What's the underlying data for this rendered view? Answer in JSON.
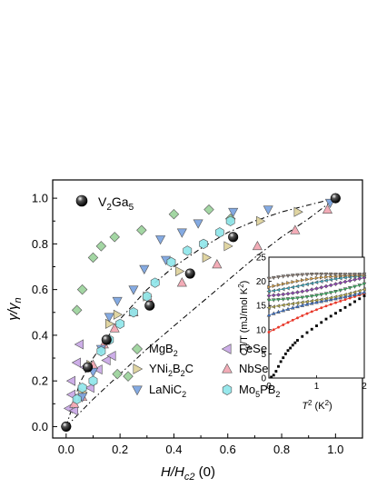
{
  "chart_data": [
    {
      "type": "scatter",
      "xlabel": "H/H",
      "xlabel_sub": "c2",
      "xlabel_tail": " (0)",
      "ylabel": "γ/γ",
      "ylabel_sub": "n",
      "xlim": [
        -0.05,
        1.1
      ],
      "ylim": [
        -0.05,
        1.08
      ],
      "xticks": [
        "0.0",
        "0.2",
        "0.4",
        "0.6",
        "0.8",
        "1.0"
      ],
      "yticks": [
        "0.0",
        "0.2",
        "0.4",
        "0.6",
        "0.8",
        "1.0"
      ],
      "legend_main": {
        "label": "V",
        "sub1": "2",
        "mid": "Ga",
        "sub2": "5"
      },
      "legend": [
        {
          "key": "mgb2",
          "parts": [
            "MgB",
            "2"
          ],
          "color": "#9bd29b"
        },
        {
          "key": "fese",
          "parts": [
            "FeSe"
          ],
          "color": "#c9a7e6"
        },
        {
          "key": "yni2b2c",
          "parts": [
            "YNi",
            "2",
            "B",
            "2",
            "C"
          ],
          "color": "#ddd19a"
        },
        {
          "key": "nbse2",
          "parts": [
            "NbSe",
            "2"
          ],
          "color": "#f2a5b1"
        },
        {
          "key": "lanic2",
          "parts": [
            "LaNiC",
            "2"
          ],
          "color": "#7aa3e0"
        },
        {
          "key": "mo5pb2",
          "parts": [
            "Mo",
            "5",
            "PB",
            "2"
          ],
          "color": "#8fe6ea"
        }
      ],
      "series": [
        {
          "key": "v2ga5",
          "marker": "sphere",
          "color": "#000000",
          "x": [
            0.0,
            0.08,
            0.15,
            0.31,
            0.46,
            0.62,
            1.0
          ],
          "y": [
            0.0,
            0.26,
            0.38,
            0.53,
            0.67,
            0.83,
            1.0
          ]
        },
        {
          "key": "mgb2",
          "marker": "diamond",
          "color": "#9bd29b",
          "x": [
            0.0,
            0.04,
            0.06,
            0.1,
            0.13,
            0.18,
            0.19,
            0.23,
            0.28,
            0.4,
            0.53,
            0.61,
            1.0
          ],
          "y": [
            0.0,
            0.51,
            0.6,
            0.74,
            0.79,
            0.83,
            0.23,
            0.22,
            0.86,
            0.93,
            0.95,
            0.91,
            1.0
          ]
        },
        {
          "key": "fese",
          "marker": "triangle-left",
          "color": "#c9a7e6",
          "x": [
            0.01,
            0.02,
            0.02,
            0.03,
            0.04,
            0.05,
            0.07,
            0.09,
            0.12,
            0.15,
            0.17
          ],
          "y": [
            0.08,
            0.14,
            0.2,
            0.07,
            0.28,
            0.36,
            0.26,
            0.17,
            0.25,
            0.29,
            0.31
          ]
        },
        {
          "key": "yni2b2c",
          "marker": "triangle-right",
          "color": "#ddd19a",
          "x": [
            0.06,
            0.09,
            0.16,
            0.19,
            0.3,
            0.42,
            0.52,
            0.6,
            0.72,
            0.86
          ],
          "y": [
            0.15,
            0.27,
            0.45,
            0.49,
            0.57,
            0.68,
            0.74,
            0.79,
            0.9,
            0.94
          ]
        },
        {
          "key": "nbse2",
          "marker": "triangle-up",
          "color": "#f2a5b1",
          "x": [
            0.03,
            0.06,
            0.1,
            0.14,
            0.18,
            0.25,
            0.31,
            0.43,
            0.56,
            0.71,
            0.85,
            0.97
          ],
          "y": [
            0.1,
            0.13,
            0.27,
            0.36,
            0.43,
            0.5,
            0.55,
            0.63,
            0.71,
            0.79,
            0.86,
            0.95
          ]
        },
        {
          "key": "lanic2",
          "marker": "triangle-down",
          "color": "#7aa3e0",
          "x": [
            0.06,
            0.1,
            0.13,
            0.16,
            0.19,
            0.25,
            0.29,
            0.35,
            0.37,
            0.43,
            0.49,
            0.62,
            0.75,
            0.98
          ],
          "y": [
            0.13,
            0.24,
            0.34,
            0.48,
            0.55,
            0.6,
            0.69,
            0.82,
            0.73,
            0.85,
            0.89,
            0.94,
            0.95,
            0.98
          ]
        },
        {
          "key": "mo5pb2",
          "marker": "hexagon",
          "color": "#8fe6ea",
          "x": [
            0.04,
            0.06,
            0.1,
            0.13,
            0.16,
            0.2,
            0.25,
            0.3,
            0.33,
            0.39,
            0.45,
            0.51,
            0.57,
            0.61
          ],
          "y": [
            0.12,
            0.17,
            0.2,
            0.33,
            0.38,
            0.45,
            0.5,
            0.57,
            0.63,
            0.72,
            0.77,
            0.8,
            0.85,
            0.9
          ]
        }
      ],
      "dashdot_upper": {
        "x": [
          0.0,
          0.05,
          0.1,
          0.2,
          0.3,
          0.4,
          0.5,
          0.6,
          0.7,
          0.8,
          0.9,
          1.0
        ],
        "y": [
          0.0,
          0.19,
          0.3,
          0.47,
          0.6,
          0.7,
          0.78,
          0.85,
          0.9,
          0.94,
          0.97,
          1.0
        ]
      },
      "dashdot_lower": {
        "x": [
          0.0,
          0.1,
          0.2,
          0.3,
          0.4,
          0.5,
          0.6,
          0.7,
          0.8,
          0.9,
          1.0
        ],
        "y": [
          0.0,
          0.12,
          0.23,
          0.34,
          0.44,
          0.54,
          0.64,
          0.74,
          0.83,
          0.91,
          1.0
        ]
      }
    },
    {
      "type": "scatter",
      "inset": true,
      "xlabel": "T",
      "xlabel_sup": "2",
      "xlabel_tail": " (K",
      "xlabel_sup2": "2",
      "xlabel_end": ")",
      "ylabel": "C",
      "ylabel_sub": "p",
      "ylabel_tail": "/T (mJ/mol K",
      "ylabel_sup": "2",
      "ylabel_end": ")",
      "xlim": [
        0,
        2
      ],
      "ylim": [
        0,
        25
      ],
      "xticks": [
        "0",
        "1",
        "2"
      ],
      "yticks": [
        "0",
        "5",
        "10",
        "15",
        "20",
        "25"
      ],
      "zero_field": {
        "x": [
          0.05,
          0.1,
          0.15,
          0.2,
          0.25,
          0.3,
          0.35,
          0.4,
          0.45,
          0.5,
          0.55,
          0.6,
          0.7,
          0.8,
          0.9,
          1.0,
          1.1,
          1.2,
          1.3,
          1.4,
          1.5,
          1.6,
          1.7,
          1.8,
          1.9,
          2.0
        ],
        "y": [
          0.2,
          0.6,
          1.4,
          2.4,
          3.4,
          4.2,
          5.0,
          5.7,
          6.2,
          6.8,
          7.3,
          7.8,
          8.6,
          9.4,
          10.1,
          10.8,
          11.5,
          12.2,
          12.8,
          13.4,
          14.0,
          14.6,
          15.2,
          15.8,
          16.4,
          17.0
        ]
      },
      "field_series": [
        {
          "color": "#e8382a",
          "marker": "circle",
          "y0": 9.5,
          "y1": 17.6
        },
        {
          "color": "#2f6fd6",
          "marker": "triangle-up",
          "y0": 12.5,
          "y1": 18.3
        },
        {
          "color": "#c0b23a",
          "marker": "triangle-left",
          "y0": 14.0,
          "y1": 18.8
        },
        {
          "color": "#2fb55a",
          "marker": "triangle-down",
          "y0": 16.0,
          "y1": 19.4
        },
        {
          "color": "#8f3bb8",
          "marker": "diamond",
          "y0": 17.5,
          "y1": 20.2
        },
        {
          "color": "#2fb0c8",
          "marker": "triangle-left",
          "y0": 18.5,
          "y1": 20.6
        },
        {
          "color": "#e3a23a",
          "marker": "triangle-right",
          "y0": 19.0,
          "y1": 21.2
        },
        {
          "color": "#8a7a70",
          "marker": "triangle-down",
          "y0": 20.2,
          "y1": 22.0
        }
      ]
    }
  ]
}
